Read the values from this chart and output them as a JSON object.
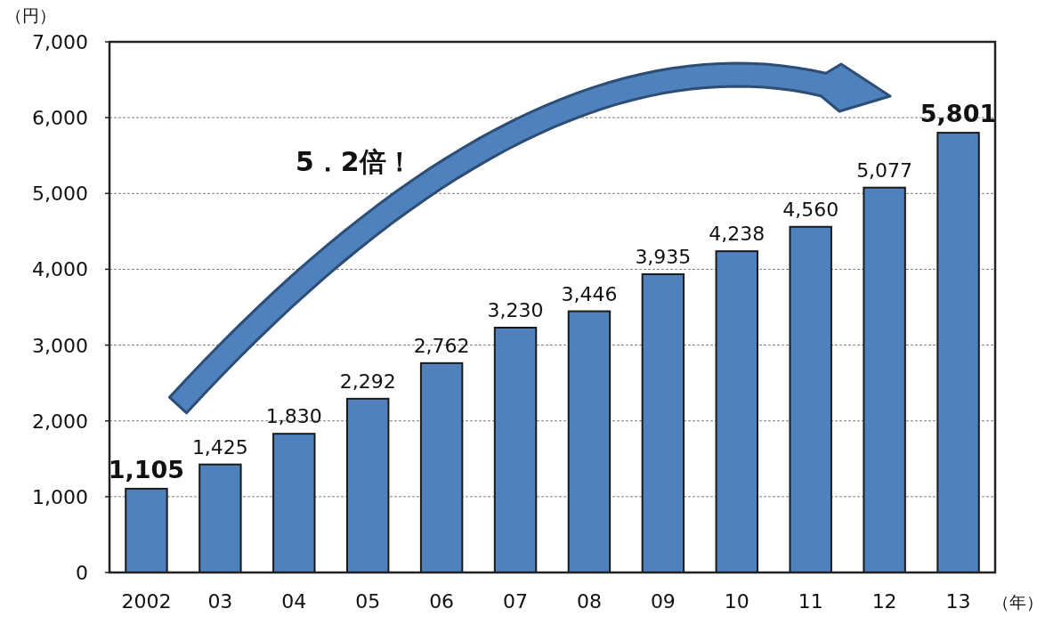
{
  "chart_data": {
    "type": "bar",
    "ylabel": "（円）",
    "xlabel": "（年）",
    "categories": [
      "2002",
      "03",
      "04",
      "05",
      "06",
      "07",
      "08",
      "09",
      "10",
      "11",
      "12",
      "13"
    ],
    "values": [
      1105,
      1425,
      1830,
      2292,
      2762,
      3230,
      3446,
      3935,
      4238,
      4560,
      5077,
      5801
    ],
    "value_labels": [
      "1,105",
      "1,425",
      "1,830",
      "2,292",
      "2,762",
      "3,230",
      "3,446",
      "3,935",
      "4,238",
      "4,560",
      "5,077",
      "5,801"
    ],
    "color": "#4f81bd",
    "ylim": [
      0,
      7000
    ],
    "yticks": [
      {
        "value": 0,
        "label": "0"
      },
      {
        "value": 1000,
        "label": "1,000"
      },
      {
        "value": 2000,
        "label": "2,000"
      },
      {
        "value": 3000,
        "label": "3,000"
      },
      {
        "value": 4000,
        "label": "4,000"
      },
      {
        "value": 5000,
        "label": "5,000"
      },
      {
        "value": 6000,
        "label": "6,000"
      },
      {
        "value": 7000,
        "label": "7,000"
      }
    ],
    "grid": "y",
    "annotations": [
      "5．2倍！"
    ]
  }
}
